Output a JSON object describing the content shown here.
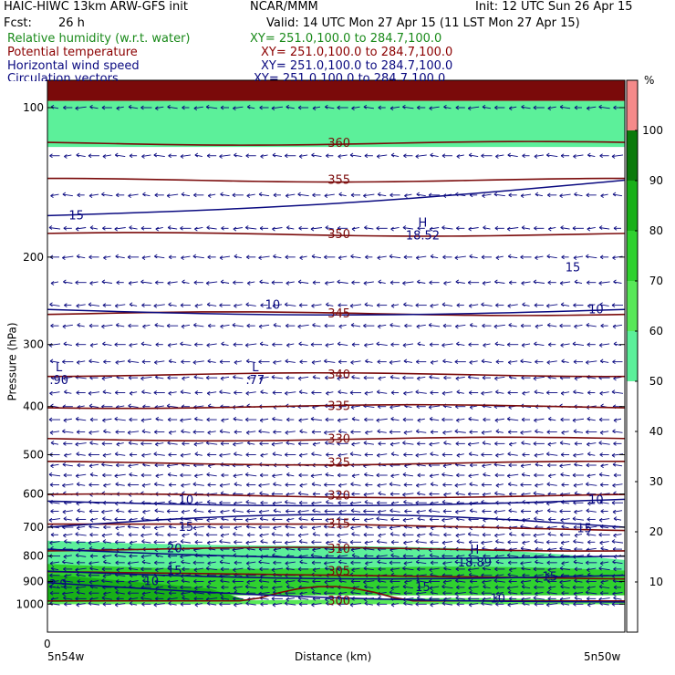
{
  "header": {
    "model": "HAIC-HIWC 13km ARW-GFS init",
    "center": "NCAR/MMM",
    "init": "Init: 12 UTC Sun 26 Apr 15",
    "fcst_label": "Fcst:",
    "fcst_value": "26 h",
    "valid": "Valid: 14 UTC Mon 27 Apr 15 (11 LST Mon 27 Apr 15)"
  },
  "legend": [
    {
      "name": "Relative humidity (w.r.t. water)",
      "xy": "XY= 251.0,100.0 to 284.7,100.0",
      "color": "#1a8a1a"
    },
    {
      "name": "Potential temperature",
      "xy": "XY= 251.0,100.0 to 284.7,100.0",
      "color": "#8b0000"
    },
    {
      "name": "Horizontal wind speed",
      "xy": "XY= 251.0,100.0 to 284.7,100.0",
      "color": "#0a0a80"
    },
    {
      "name": "Circulation vectors",
      "xy": "XY= 251.0,100.0 to 284.7,100.0",
      "color": "#0a0a80"
    }
  ],
  "chart_data": {
    "type": "heatmap",
    "xlabel": "Distance (km)",
    "ylabel": "Pressure (hPa)",
    "x_tick_labels": [
      "0"
    ],
    "x_endpoint_labels": [
      "5n54w",
      "5n50w"
    ],
    "y_ticks": [
      100,
      200,
      300,
      400,
      500,
      600,
      700,
      800,
      900,
      1000
    ],
    "y_scale": "log",
    "ylim": [
      1050,
      80
    ],
    "colorbar": {
      "unit": "%",
      "ticks": [
        10,
        20,
        30,
        40,
        50,
        60,
        70,
        80,
        90,
        100
      ],
      "bins": [
        {
          "from": 50,
          "to": 60,
          "color": "#5cf09a"
        },
        {
          "from": 60,
          "to": 70,
          "color": "#58e858"
        },
        {
          "from": 70,
          "to": 80,
          "color": "#2fd12f"
        },
        {
          "from": 80,
          "to": 90,
          "color": "#18b018"
        },
        {
          "from": 90,
          "to": 100,
          "color": "#0b7a0b"
        },
        {
          "from": 100,
          "to": 110,
          "color": "#f58a8a"
        }
      ]
    },
    "rh_bands": [
      {
        "p_top": 80,
        "p_bottom": 97,
        "level": 100,
        "color": "#7a0a0a"
      },
      {
        "p_top": 97,
        "p_bottom": 120,
        "level": 50,
        "color": "#5cf09a"
      },
      {
        "p_top": 745,
        "p_bottom": 870,
        "level": 50,
        "color": "#5cf09a"
      },
      {
        "p_top": 830,
        "p_bottom": 960,
        "level": 70,
        "color": "#2fd12f"
      },
      {
        "p_top": 960,
        "p_bottom": 1000,
        "level": 60,
        "color": "#58e858"
      }
    ],
    "theta_isentropes": [
      {
        "level": 300,
        "p": 985
      },
      {
        "level": 305,
        "p": 860
      },
      {
        "level": 310,
        "p": 775
      },
      {
        "level": 315,
        "p": 690
      },
      {
        "level": 320,
        "p": 605
      },
      {
        "level": 325,
        "p": 520
      },
      {
        "level": 330,
        "p": 465
      },
      {
        "level": 335,
        "p": 400
      },
      {
        "level": 340,
        "p": 345
      },
      {
        "level": 345,
        "p": 260
      },
      {
        "level": 350,
        "p": 180
      },
      {
        "level": 355,
        "p": 140
      },
      {
        "level": 360,
        "p": 118
      }
    ],
    "wind_contours": [
      {
        "level": 10,
        "label": "10"
      },
      {
        "level": 15,
        "label": "15"
      },
      {
        "level": 20,
        "label": "20"
      }
    ],
    "theta_labels": [
      "300",
      "305",
      "310",
      "315",
      "320",
      "325",
      "330",
      "335",
      "340",
      "345",
      "350",
      "355",
      "360"
    ],
    "wind_labels": [
      {
        "text": "15",
        "x": 0.05,
        "p": 165
      },
      {
        "text": "10",
        "x": 0.39,
        "p": 250
      },
      {
        "text": "10",
        "x": 0.95,
        "p": 255
      },
      {
        "text": "15",
        "x": 0.91,
        "p": 210
      },
      {
        "text": "10",
        "x": 0.24,
        "p": 618
      },
      {
        "text": "10",
        "x": 0.95,
        "p": 618
      },
      {
        "text": "15",
        "x": 0.24,
        "p": 700
      },
      {
        "text": "15",
        "x": 0.93,
        "p": 705
      },
      {
        "text": "20",
        "x": 0.22,
        "p": 773
      },
      {
        "text": "15",
        "x": 0.22,
        "p": 858
      },
      {
        "text": "10",
        "x": 0.18,
        "p": 900
      },
      {
        "text": "15",
        "x": 0.65,
        "p": 925
      },
      {
        "text": "15",
        "x": 0.87,
        "p": 882
      },
      {
        "text": "10",
        "x": 0.78,
        "p": 975
      }
    ],
    "extrema": [
      {
        "type": "H",
        "value": "18.52",
        "x": 0.65,
        "p": 178
      },
      {
        "type": "H",
        "value": "18.89",
        "x": 0.74,
        "p": 812
      },
      {
        "type": "L",
        "value": ".90",
        "x": 0.02,
        "p": 348
      },
      {
        "type": "L",
        "value": ".77",
        "x": 0.36,
        "p": 348
      }
    ],
    "corner_value": "2.9",
    "grid": false
  }
}
